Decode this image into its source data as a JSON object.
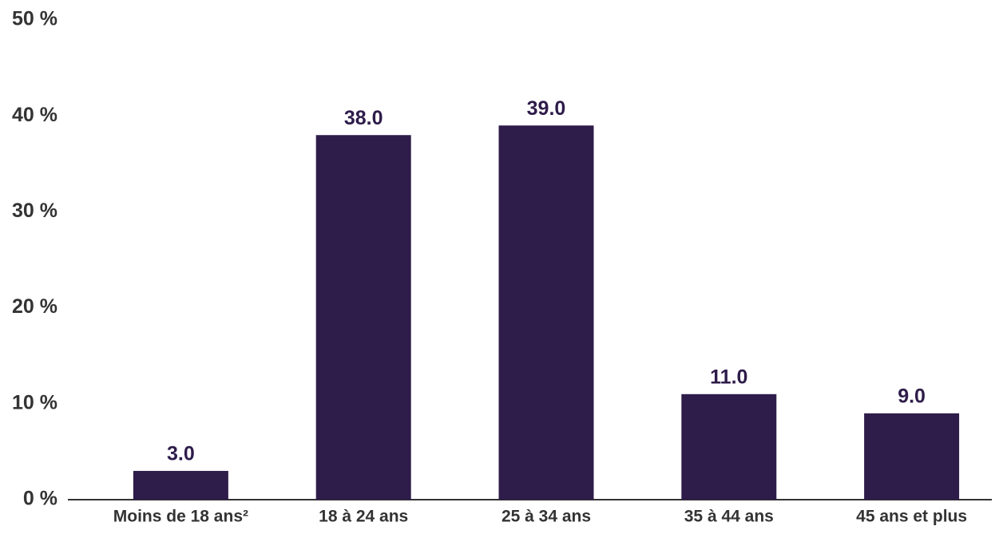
{
  "chart_data": {
    "type": "bar",
    "categories": [
      "Moins de 18 ans²",
      "18 à 24 ans",
      "25 à 34 ans",
      "35 à 44 ans",
      "45 ans et plus"
    ],
    "values": [
      3,
      38,
      39,
      11,
      9
    ],
    "value_labels": [
      "3.0",
      "38.0",
      "39.0",
      "11.0",
      "9.0"
    ],
    "color": "#2e1c4a",
    "ylim": [
      0,
      50
    ],
    "yticks": [
      {
        "value": 0,
        "label": "0 %"
      },
      {
        "value": 10,
        "label": "10 %"
      },
      {
        "value": 20,
        "label": "20 %"
      },
      {
        "value": 30,
        "label": "30 %"
      },
      {
        "value": 40,
        "label": "40 %"
      },
      {
        "value": 50,
        "label": "50 %"
      }
    ],
    "grid": false
  }
}
